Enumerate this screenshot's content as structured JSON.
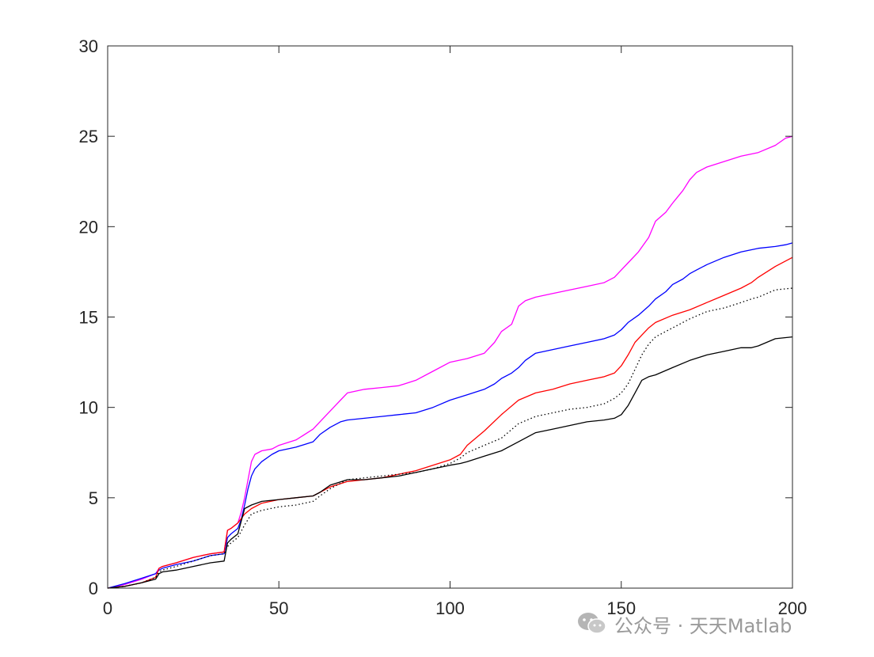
{
  "chart_data": {
    "type": "line",
    "title": "",
    "xlabel": "",
    "ylabel": "",
    "xlim": [
      0,
      200
    ],
    "ylim": [
      0,
      30
    ],
    "x_ticks": [
      0,
      50,
      100,
      150,
      200
    ],
    "y_ticks": [
      0,
      5,
      10,
      15,
      20,
      25,
      30
    ],
    "grid": false,
    "series": [
      {
        "color": "#ff00ff",
        "dash": "solid",
        "x": [
          0,
          5,
          10,
          14,
          15,
          16,
          20,
          25,
          30,
          34,
          35,
          36,
          38,
          39,
          40,
          41,
          42,
          43,
          45,
          48,
          50,
          55,
          60,
          62,
          65,
          68,
          70,
          75,
          80,
          85,
          90,
          95,
          100,
          105,
          110,
          113,
          115,
          118,
          120,
          122,
          125,
          130,
          135,
          140,
          145,
          148,
          150,
          152,
          155,
          158,
          160,
          163,
          165,
          168,
          170,
          172,
          175,
          180,
          185,
          190,
          195,
          198,
          200
        ],
        "y": [
          0,
          0.2,
          0.5,
          0.8,
          1.1,
          1.2,
          1.4,
          1.7,
          1.9,
          2.0,
          3.2,
          3.3,
          3.6,
          4.2,
          5.0,
          6.0,
          7.0,
          7.4,
          7.6,
          7.7,
          7.9,
          8.2,
          8.8,
          9.2,
          9.8,
          10.4,
          10.8,
          11.0,
          11.1,
          11.2,
          11.5,
          12.0,
          12.5,
          12.7,
          13.0,
          13.6,
          14.2,
          14.6,
          15.6,
          15.9,
          16.1,
          16.3,
          16.5,
          16.7,
          16.9,
          17.2,
          17.6,
          18.0,
          18.6,
          19.4,
          20.3,
          20.8,
          21.3,
          22.0,
          22.6,
          23.0,
          23.3,
          23.6,
          23.9,
          24.1,
          24.5,
          24.9,
          25.0
        ]
      },
      {
        "color": "#0000ff",
        "dash": "solid",
        "x": [
          0,
          5,
          10,
          14,
          15,
          16,
          20,
          25,
          30,
          34,
          35,
          36,
          38,
          39,
          40,
          41,
          42,
          43,
          45,
          48,
          50,
          55,
          60,
          62,
          65,
          68,
          70,
          75,
          80,
          85,
          90,
          95,
          100,
          105,
          110,
          113,
          115,
          118,
          120,
          122,
          125,
          130,
          135,
          140,
          145,
          148,
          150,
          152,
          155,
          158,
          160,
          163,
          165,
          168,
          170,
          172,
          175,
          180,
          185,
          190,
          195,
          198,
          200
        ],
        "y": [
          0,
          0.25,
          0.55,
          0.8,
          1.0,
          1.1,
          1.3,
          1.5,
          1.8,
          1.9,
          2.8,
          3.0,
          3.3,
          3.8,
          4.6,
          5.5,
          6.2,
          6.6,
          7.0,
          7.4,
          7.6,
          7.8,
          8.1,
          8.5,
          8.9,
          9.2,
          9.3,
          9.4,
          9.5,
          9.6,
          9.7,
          10.0,
          10.4,
          10.7,
          11.0,
          11.3,
          11.6,
          11.9,
          12.2,
          12.6,
          13.0,
          13.2,
          13.4,
          13.6,
          13.8,
          14.0,
          14.3,
          14.7,
          15.1,
          15.6,
          16.0,
          16.4,
          16.8,
          17.1,
          17.4,
          17.6,
          17.9,
          18.3,
          18.6,
          18.8,
          18.9,
          19.0,
          19.1
        ]
      },
      {
        "color": "#ff0000",
        "dash": "solid",
        "x": [
          0,
          5,
          10,
          14,
          15,
          16,
          20,
          25,
          30,
          34,
          35,
          36,
          38,
          40,
          42,
          45,
          50,
          55,
          60,
          62,
          65,
          70,
          75,
          80,
          85,
          90,
          95,
          100,
          103,
          105,
          110,
          115,
          120,
          125,
          130,
          135,
          140,
          145,
          148,
          150,
          152,
          154,
          156,
          158,
          160,
          165,
          170,
          175,
          180,
          185,
          188,
          190,
          195,
          200
        ],
        "y": [
          0,
          0.1,
          0.3,
          0.6,
          1.1,
          1.2,
          1.4,
          1.7,
          1.9,
          2.0,
          3.2,
          3.3,
          3.6,
          4.1,
          4.4,
          4.7,
          4.9,
          5.0,
          5.1,
          5.3,
          5.6,
          5.9,
          6.0,
          6.1,
          6.3,
          6.5,
          6.8,
          7.1,
          7.4,
          7.9,
          8.7,
          9.6,
          10.4,
          10.8,
          11.0,
          11.3,
          11.5,
          11.7,
          11.9,
          12.3,
          12.9,
          13.6,
          14.0,
          14.4,
          14.7,
          15.1,
          15.4,
          15.8,
          16.2,
          16.6,
          16.9,
          17.2,
          17.8,
          18.3
        ]
      },
      {
        "color": "#000000",
        "dash": "dotted",
        "x": [
          0,
          5,
          10,
          14,
          15,
          16,
          20,
          25,
          30,
          34,
          35,
          36,
          38,
          40,
          42,
          45,
          50,
          55,
          60,
          62,
          65,
          70,
          75,
          80,
          85,
          90,
          95,
          100,
          103,
          105,
          110,
          115,
          120,
          125,
          130,
          135,
          140,
          145,
          148,
          150,
          152,
          154,
          156,
          158,
          160,
          165,
          170,
          175,
          180,
          185,
          188,
          190,
          195,
          200
        ],
        "y": [
          0,
          0.1,
          0.3,
          0.6,
          0.9,
          1.0,
          1.2,
          1.5,
          1.8,
          1.9,
          2.3,
          2.5,
          2.8,
          3.5,
          4.1,
          4.3,
          4.5,
          4.6,
          4.8,
          5.1,
          5.5,
          6.0,
          6.1,
          6.2,
          6.3,
          6.4,
          6.6,
          6.9,
          7.2,
          7.5,
          7.9,
          8.3,
          9.1,
          9.5,
          9.7,
          9.9,
          10.0,
          10.2,
          10.5,
          10.8,
          11.3,
          12.1,
          12.9,
          13.5,
          13.9,
          14.4,
          14.9,
          15.3,
          15.5,
          15.8,
          16.0,
          16.1,
          16.5,
          16.6
        ]
      },
      {
        "color": "#000000",
        "dash": "solid",
        "x": [
          0,
          5,
          10,
          14,
          15,
          16,
          20,
          25,
          30,
          34,
          35,
          36,
          38,
          40,
          42,
          45,
          50,
          55,
          60,
          62,
          65,
          70,
          75,
          80,
          85,
          90,
          95,
          100,
          103,
          105,
          110,
          115,
          120,
          125,
          130,
          135,
          140,
          145,
          148,
          150,
          152,
          154,
          156,
          158,
          160,
          165,
          170,
          175,
          180,
          185,
          188,
          190,
          195,
          200
        ],
        "y": [
          0,
          0.1,
          0.3,
          0.5,
          0.8,
          0.9,
          1.0,
          1.2,
          1.4,
          1.5,
          2.5,
          2.7,
          3.0,
          4.4,
          4.6,
          4.8,
          4.9,
          5.0,
          5.1,
          5.3,
          5.7,
          6.0,
          6.0,
          6.1,
          6.2,
          6.4,
          6.6,
          6.8,
          6.9,
          7.0,
          7.3,
          7.6,
          8.1,
          8.6,
          8.8,
          9.0,
          9.2,
          9.3,
          9.4,
          9.6,
          10.1,
          10.8,
          11.5,
          11.7,
          11.8,
          12.2,
          12.6,
          12.9,
          13.1,
          13.3,
          13.3,
          13.4,
          13.8,
          13.9
        ]
      }
    ]
  },
  "watermark": {
    "text": "公众号 · 天天Matlab"
  }
}
